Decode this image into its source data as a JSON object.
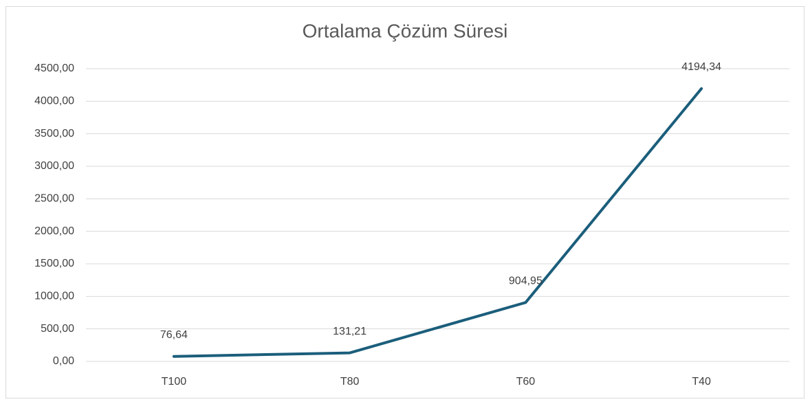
{
  "chart_data": {
    "type": "line",
    "title": "Ortalama Çözüm Süresi",
    "categories": [
      "T100",
      "T80",
      "T60",
      "T40"
    ],
    "series": [
      {
        "color": "#1b5e7b",
        "values": [
          76.64,
          131.21,
          904.95,
          4194.34
        ],
        "value_labels": [
          "76,64",
          "131,21",
          "904,95",
          "4194,34"
        ]
      }
    ],
    "ylim": [
      0,
      4500
    ],
    "yticks": [
      {
        "value": 0,
        "label": "0,00"
      },
      {
        "value": 500,
        "label": "500,00"
      },
      {
        "value": 1000,
        "label": "1000,00"
      },
      {
        "value": 1500,
        "label": "1500,00"
      },
      {
        "value": 2000,
        "label": "2000,00"
      },
      {
        "value": 2500,
        "label": "2500,00"
      },
      {
        "value": 3000,
        "label": "3000,00"
      },
      {
        "value": 3500,
        "label": "3500,00"
      },
      {
        "value": 4000,
        "label": "4000,00"
      },
      {
        "value": 4500,
        "label": "4500,00"
      }
    ],
    "grid": true
  }
}
